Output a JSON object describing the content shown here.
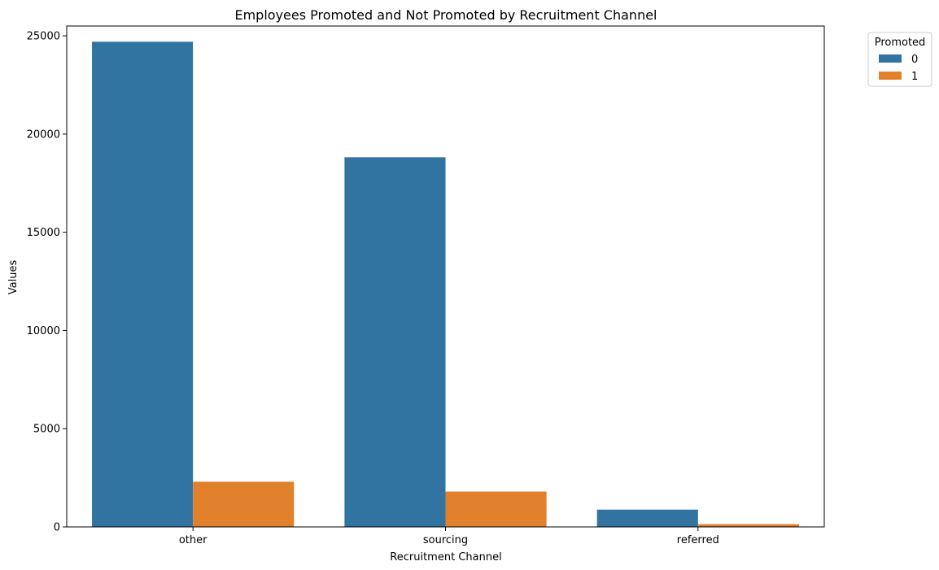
{
  "chart_data": {
    "type": "bar",
    "title": "Employees Promoted and Not Promoted by Recruitment Channel",
    "xlabel": "Recruitment Channel",
    "ylabel": "Values",
    "categories": [
      "other",
      "sourcing",
      "referred"
    ],
    "series": [
      {
        "name": "0",
        "values": [
          24700,
          18820,
          880
        ],
        "color": "#3274a1"
      },
      {
        "name": "1",
        "values": [
          2300,
          1800,
          140
        ],
        "color": "#e1812c"
      }
    ],
    "ylim": [
      0,
      25500
    ],
    "yticks": [
      0,
      5000,
      10000,
      15000,
      20000,
      25000
    ],
    "grid": false,
    "legend": {
      "title": "Promoted",
      "placement": "outside-top-right"
    }
  }
}
